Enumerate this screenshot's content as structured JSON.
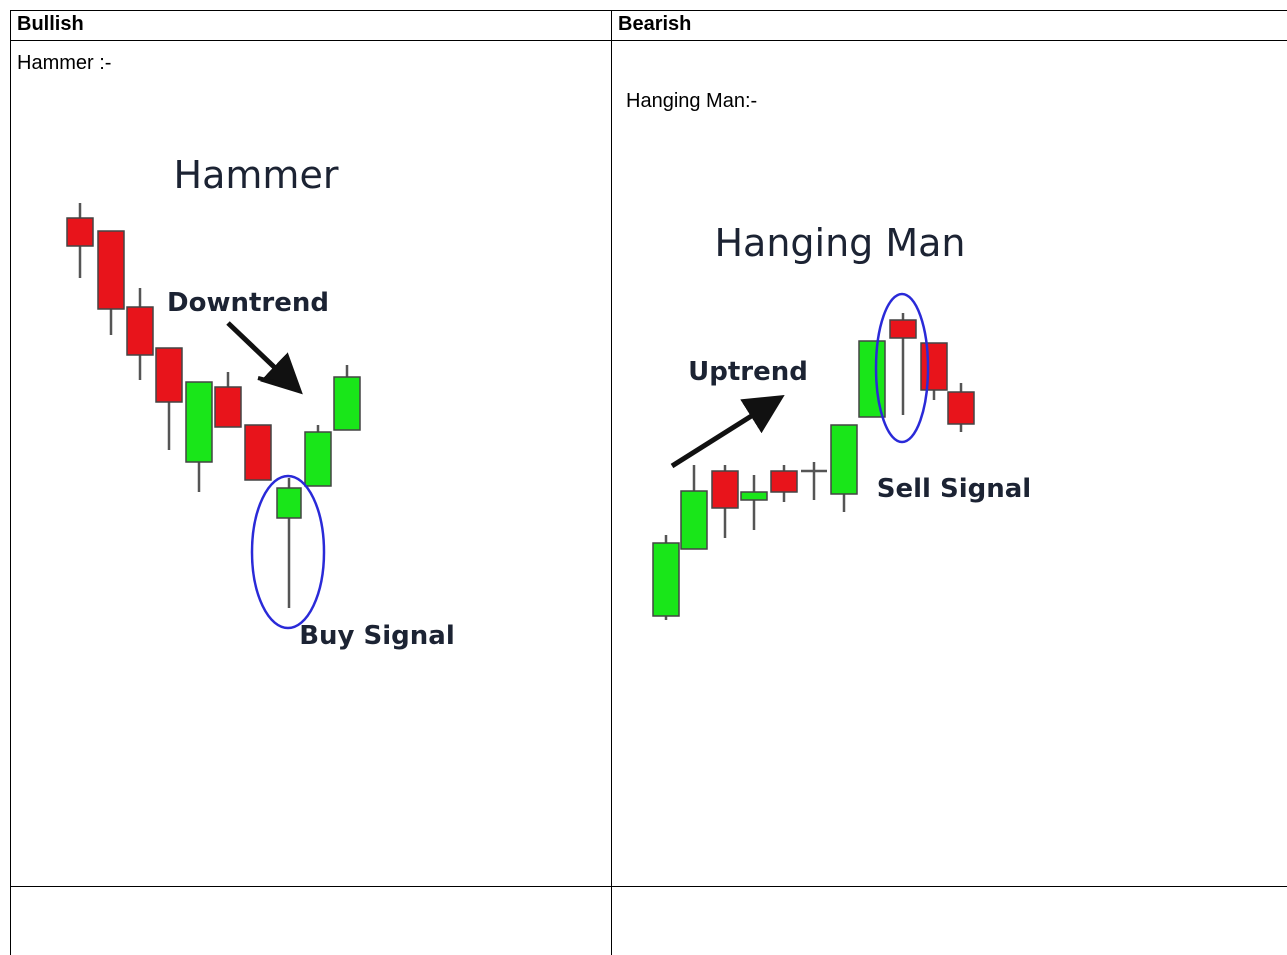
{
  "table": {
    "header": [
      "Bullish",
      "Bearish"
    ],
    "rows": [
      [
        "Hammer :-",
        "Hanging Man:-"
      ]
    ]
  },
  "figures": {
    "hammer": {
      "title": "Hammer",
      "trend_label": "Downtrend",
      "signal_label": "Buy Signal"
    },
    "hanging_man": {
      "title": "Hanging Man",
      "trend_label": "Uptrend",
      "signal_label": "Sell Signal"
    }
  }
}
